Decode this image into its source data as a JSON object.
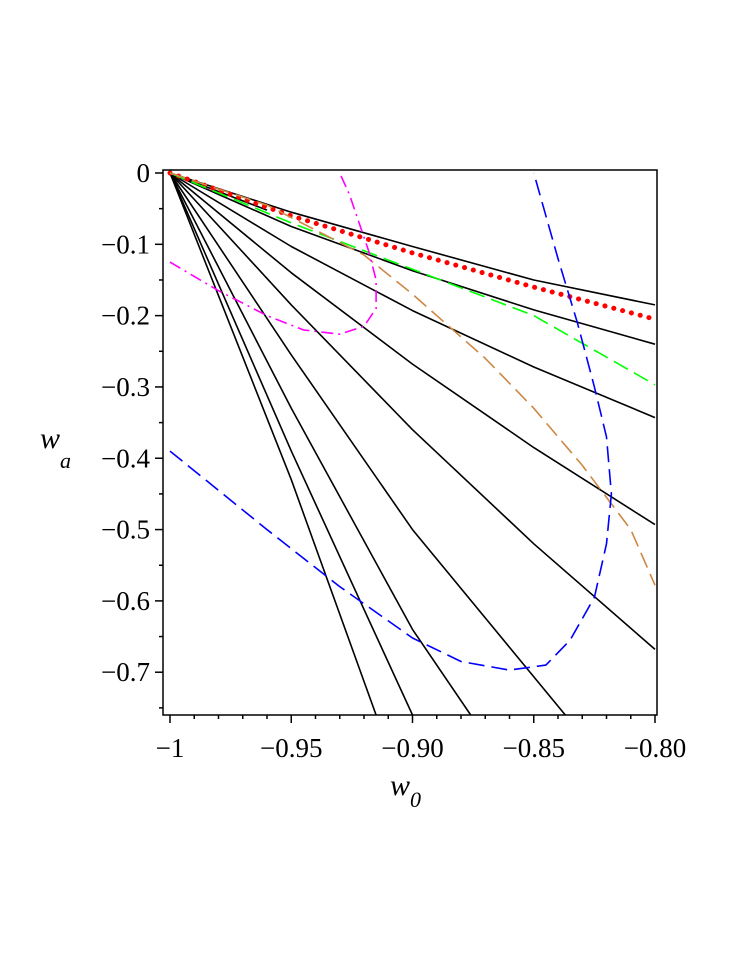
{
  "chart_data": {
    "type": "line",
    "title": "",
    "xlabel": "w",
    "xlabel_sub": "0",
    "ylabel": "w",
    "ylabel_sub": "a",
    "xlim": [
      -1.0,
      -0.8
    ],
    "ylim": [
      -0.76,
      0.0
    ],
    "grid": false,
    "legend": "none",
    "x_ticks": [
      {
        "value": -1.0,
        "label": "-1"
      },
      {
        "value": -0.95,
        "label": "-0.95"
      },
      {
        "value": -0.9,
        "label": "-0.90"
      },
      {
        "value": -0.85,
        "label": "-0.85"
      },
      {
        "value": -0.8,
        "label": "-0.80"
      }
    ],
    "y_ticks": [
      {
        "value": 0.0,
        "label": "0"
      },
      {
        "value": -0.1,
        "label": "-0.1"
      },
      {
        "value": -0.2,
        "label": "-0.2"
      },
      {
        "value": -0.3,
        "label": "-0.3"
      },
      {
        "value": -0.4,
        "label": "-0.4"
      },
      {
        "value": -0.5,
        "label": "-0.5"
      },
      {
        "value": -0.6,
        "label": "-0.6"
      },
      {
        "value": -0.7,
        "label": "-0.7"
      }
    ],
    "series": [
      {
        "color": "#000000",
        "style": "solid",
        "points": [
          [
            -1.0,
            0.0
          ],
          [
            -0.96,
            -0.052
          ]
        ]
      },
      {
        "color": "#000000",
        "style": "solid",
        "points": [
          [
            -1.0,
            0.0
          ],
          [
            -0.95,
            -0.055
          ],
          [
            -0.9,
            -0.103
          ],
          [
            -0.85,
            -0.15
          ],
          [
            -0.8,
            -0.185
          ]
        ]
      },
      {
        "color": "#000000",
        "style": "solid",
        "points": [
          [
            -1.0,
            0.0
          ],
          [
            -0.95,
            -0.075
          ],
          [
            -0.9,
            -0.137
          ],
          [
            -0.85,
            -0.192
          ],
          [
            -0.8,
            -0.24
          ]
        ]
      },
      {
        "color": "#000000",
        "style": "solid",
        "points": [
          [
            -1.0,
            0.0
          ],
          [
            -0.95,
            -0.103
          ],
          [
            -0.9,
            -0.193
          ],
          [
            -0.85,
            -0.272
          ],
          [
            -0.8,
            -0.343
          ]
        ]
      },
      {
        "color": "#000000",
        "style": "solid",
        "points": [
          [
            -1.0,
            0.0
          ],
          [
            -0.95,
            -0.14
          ],
          [
            -0.9,
            -0.268
          ],
          [
            -0.85,
            -0.385
          ],
          [
            -0.8,
            -0.493
          ]
        ]
      },
      {
        "color": "#000000",
        "style": "solid",
        "points": [
          [
            -1.0,
            0.0
          ],
          [
            -0.95,
            -0.185
          ],
          [
            -0.9,
            -0.36
          ],
          [
            -0.85,
            -0.52
          ],
          [
            -0.8,
            -0.668
          ]
        ]
      },
      {
        "color": "#000000",
        "style": "solid",
        "points": [
          [
            -1.0,
            0.0
          ],
          [
            -0.95,
            -0.255
          ],
          [
            -0.9,
            -0.5
          ],
          [
            -0.837,
            -0.76
          ]
        ]
      },
      {
        "color": "#000000",
        "style": "solid",
        "points": [
          [
            -1.0,
            0.0
          ],
          [
            -0.95,
            -0.33
          ],
          [
            -0.9,
            -0.64
          ],
          [
            -0.876,
            -0.76
          ]
        ]
      },
      {
        "color": "#000000",
        "style": "solid",
        "points": [
          [
            -1.0,
            0.0
          ],
          [
            -0.95,
            -0.39
          ],
          [
            -0.9,
            -0.76
          ]
        ]
      },
      {
        "color": "#000000",
        "style": "solid",
        "points": [
          [
            -1.0,
            0.0
          ],
          [
            -0.95,
            -0.43
          ],
          [
            -0.915,
            -0.76
          ]
        ]
      },
      {
        "color": "#ff0000",
        "style": "dotted",
        "points": [
          [
            -1.0,
            0.0
          ],
          [
            -0.95,
            -0.06
          ],
          [
            -0.9,
            -0.112
          ],
          [
            -0.85,
            -0.16
          ],
          [
            -0.8,
            -0.205
          ]
        ]
      },
      {
        "color": "#00ff00",
        "style": "dashed",
        "points": [
          [
            -1.0,
            0.0
          ],
          [
            -0.95,
            -0.07
          ],
          [
            -0.9,
            -0.135
          ],
          [
            -0.85,
            -0.2
          ],
          [
            -0.8,
            -0.297
          ]
        ]
      },
      {
        "color": "#cc8844",
        "style": "dashed",
        "points": [
          [
            -1.0,
            0.0
          ],
          [
            -0.96,
            -0.045
          ],
          [
            -0.92,
            -0.115
          ],
          [
            -0.9,
            -0.17
          ],
          [
            -0.87,
            -0.26
          ],
          [
            -0.85,
            -0.33
          ],
          [
            -0.83,
            -0.41
          ],
          [
            -0.81,
            -0.5
          ],
          [
            -0.8,
            -0.578
          ]
        ]
      },
      {
        "color": "#0000ff",
        "style": "dashed",
        "points": [
          [
            -1.0,
            -0.39
          ],
          [
            -0.96,
            -0.5
          ],
          [
            -0.93,
            -0.58
          ],
          [
            -0.9,
            -0.652
          ],
          [
            -0.88,
            -0.685
          ],
          [
            -0.86,
            -0.697
          ],
          [
            -0.845,
            -0.69
          ],
          [
            -0.835,
            -0.655
          ],
          [
            -0.825,
            -0.595
          ],
          [
            -0.82,
            -0.52
          ],
          [
            -0.818,
            -0.45
          ],
          [
            -0.82,
            -0.37
          ],
          [
            -0.825,
            -0.3
          ],
          [
            -0.832,
            -0.21
          ],
          [
            -0.84,
            -0.12
          ],
          [
            -0.85,
            0.0
          ]
        ]
      },
      {
        "color": "#ff00ff",
        "style": "dashdot",
        "points": [
          [
            -1.0,
            -0.125
          ],
          [
            -0.98,
            -0.165
          ],
          [
            -0.96,
            -0.2
          ],
          [
            -0.945,
            -0.22
          ],
          [
            -0.93,
            -0.226
          ],
          [
            -0.92,
            -0.215
          ],
          [
            -0.915,
            -0.19
          ],
          [
            -0.915,
            -0.15
          ],
          [
            -0.918,
            -0.11
          ],
          [
            -0.922,
            -0.07
          ],
          [
            -0.926,
            -0.03
          ],
          [
            -0.93,
            0.0
          ]
        ]
      }
    ]
  }
}
